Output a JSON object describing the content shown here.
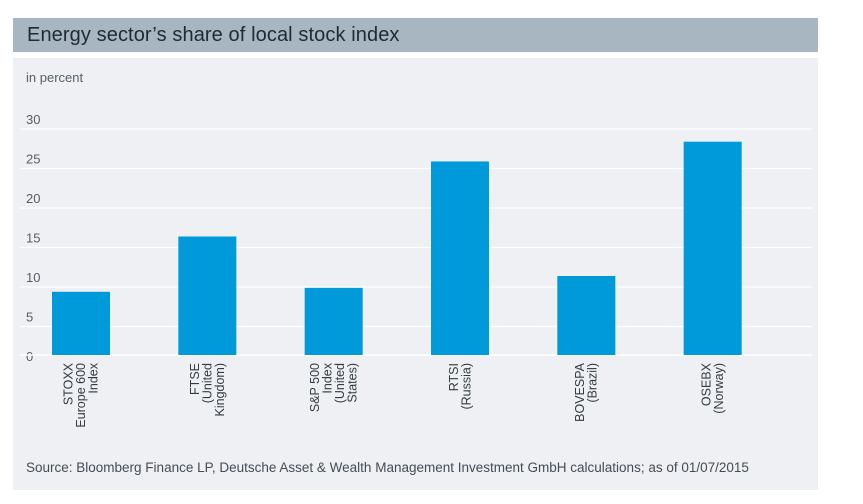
{
  "title": "Energy sector’s share of local stock index",
  "unit": "in percent",
  "source": "Source: Bloomberg Finance LP, Deutsche Asset & Wealth Management Investment GmbH calculations; as of 01/07/2015",
  "colors": {
    "bar": "#0099da",
    "title_bg": "#a8b6c2",
    "panel_bg": "#eef0f3",
    "grid": "#ffffff",
    "axis_text": "#555f68"
  },
  "chart_data": {
    "type": "bar",
    "categories": [
      [
        "STOXX",
        "Europe 600",
        "Index"
      ],
      [
        "FTSE",
        "(United",
        "Kingdom)"
      ],
      [
        "S&P 500",
        "Index",
        "(United",
        "States)"
      ],
      [
        "RTSI",
        "(Russia)"
      ],
      [
        "BOVESPA",
        "(Brazil)"
      ],
      [
        "OSEBX",
        "(Norway)"
      ]
    ],
    "values": [
      8,
      15,
      8.5,
      24.5,
      10,
      27
    ],
    "ylim": [
      0,
      30
    ],
    "yticks": [
      0,
      5,
      10,
      15,
      20,
      25,
      30
    ],
    "ylabel": "in percent",
    "grid": true,
    "legend": "none"
  }
}
